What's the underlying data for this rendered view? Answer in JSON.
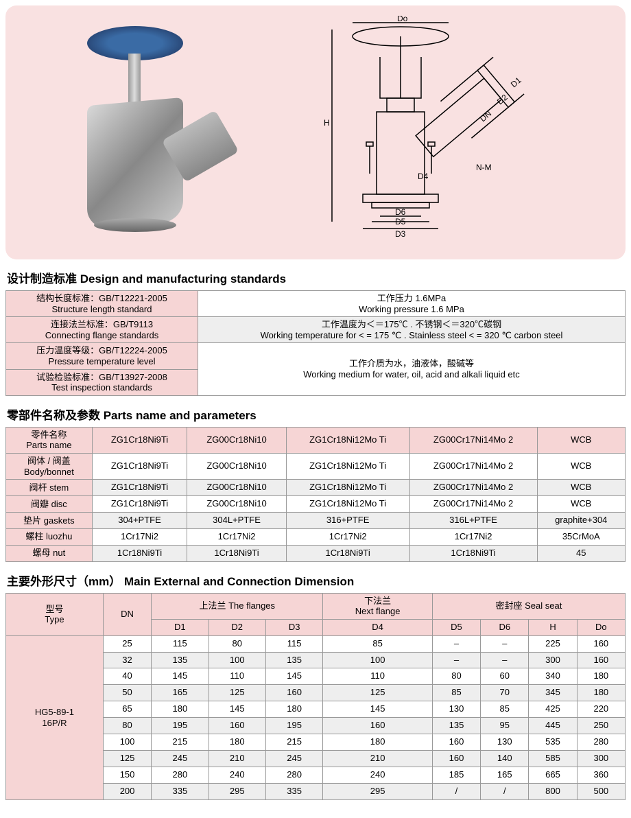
{
  "hero": {
    "bg_color": "#f9e1e1",
    "diagram_labels": [
      "Do",
      "H",
      "D1",
      "D2",
      "DN",
      "D4",
      "N-M",
      "D6",
      "D5",
      "D3"
    ]
  },
  "sections": {
    "design_title": "设计制造标准 Design and manufacturing standards",
    "parts_title": "零部件名称及参数 Parts name and parameters",
    "dims_title": "主要外形尺寸（mm） Main External and Connection Dimension"
  },
  "design_table": {
    "rows": [
      {
        "left_cn": "结构长度标准：GB/T12221-2005",
        "left_en": "Structure length standard",
        "right_cn": "工作压力 1.6MPa",
        "right_en": "Working pressure 1.6 MPa",
        "right_rowspan": 1,
        "left_bg": "pink",
        "right_bg": "white"
      },
      {
        "left_cn": "连接法兰标准：GB/T9113",
        "left_en": "Connecting flange standards",
        "right_cn": "工作温度为＜＝175℃ . 不锈钢＜＝320℃碳钢",
        "right_en": "Working temperature for < = 175 ℃ . Stainless steel < = 320 ℃ carbon steel",
        "right_rowspan": 1,
        "left_bg": "pink",
        "right_bg": "gray"
      },
      {
        "left_cn": "压力温度等级：GB/T12224-2005",
        "left_en": "Pressure temperature level",
        "right_cn": "工作介质为水，油液体，酸碱等",
        "right_en": "Working medium for water, oil, acid and alkali liquid etc",
        "right_rowspan": 2,
        "left_bg": "pink",
        "right_bg": "white"
      },
      {
        "left_cn": "试验检验标准：GB/T13927-2008",
        "left_en": "Test inspection standards",
        "left_bg": "pink"
      }
    ]
  },
  "parts_table": {
    "header": {
      "col0_cn": "零件名称",
      "col0_en": "Parts name",
      "cols": [
        "ZG1Cr18Ni9Ti",
        "ZG00Cr18Ni10",
        "ZG1Cr18Ni12Mo Ti",
        "ZG00Cr17Ni14Mo 2",
        "WCB"
      ]
    },
    "rows": [
      {
        "label_cn": "阀体 / 阀盖",
        "label_en": "Body/bonnet",
        "bg": "pink",
        "vals": [
          "ZG1Cr18Ni9Ti",
          "ZG00Cr18Ni10",
          "ZG1Cr18Ni12Mo Ti",
          "ZG00Cr17Ni14Mo 2",
          "WCB"
        ],
        "vbg": "white"
      },
      {
        "label_cn": "阀杆 stem",
        "label_en": "",
        "bg": "pink",
        "vals": [
          "ZG1Cr18Ni9Ti",
          "ZG00Cr18Ni10",
          "ZG1Cr18Ni12Mo Ti",
          "ZG00Cr17Ni14Mo 2",
          "WCB"
        ],
        "vbg": "gray"
      },
      {
        "label_cn": "阀瓣 disc",
        "label_en": "",
        "bg": "pink",
        "vals": [
          "ZG1Cr18Ni9Ti",
          "ZG00Cr18Ni10",
          "ZG1Cr18Ni12Mo Ti",
          "ZG00Cr17Ni14Mo 2",
          "WCB"
        ],
        "vbg": "white"
      },
      {
        "label_cn": "垫片 gaskets",
        "label_en": "",
        "bg": "pink",
        "vals": [
          "304+PTFE",
          "304L+PTFE",
          "316+PTFE",
          "316L+PTFE",
          "graphite+304"
        ],
        "vbg": "gray"
      },
      {
        "label_cn": "螺柱 luozhu",
        "label_en": "",
        "bg": "pink",
        "vals": [
          "1Cr17Ni2",
          "1Cr17Ni2",
          "1Cr17Ni2",
          "1Cr17Ni2",
          "35CrMoA"
        ],
        "vbg": "white"
      },
      {
        "label_cn": "螺母 nut",
        "label_en": "",
        "bg": "pink",
        "vals": [
          "1Cr18Ni9Ti",
          "1Cr18Ni9Ti",
          "1Cr18Ni9Ti",
          "1Cr18Ni9Ti",
          "45"
        ],
        "vbg": "gray"
      }
    ]
  },
  "dims_table": {
    "header_row1": {
      "type_cn": "型号",
      "type_en": "Type",
      "dn": "DN",
      "flanges_cn": "上法兰 The flanges",
      "next_cn": "下法兰",
      "next_en": "Next flange",
      "seal_cn": "密封座 Seal seat"
    },
    "header_row2": [
      "D1",
      "D2",
      "D3",
      "D4",
      "D5",
      "D6",
      "H",
      "Do"
    ],
    "type_label": "HG5-89-1 16P/R",
    "rows": [
      {
        "dn": "25",
        "d1": "115",
        "d2": "80",
        "d3": "115",
        "d4": "85",
        "d5": "–",
        "d6": "–",
        "h": "225",
        "do": "160",
        "bg": "white"
      },
      {
        "dn": "32",
        "d1": "135",
        "d2": "100",
        "d3": "135",
        "d4": "100",
        "d5": "–",
        "d6": "–",
        "h": "300",
        "do": "160",
        "bg": "gray"
      },
      {
        "dn": "40",
        "d1": "145",
        "d2": "110",
        "d3": "145",
        "d4": "110",
        "d5": "80",
        "d6": "60",
        "h": "340",
        "do": "180",
        "bg": "white"
      },
      {
        "dn": "50",
        "d1": "165",
        "d2": "125",
        "d3": "160",
        "d4": "125",
        "d5": "85",
        "d6": "70",
        "h": "345",
        "do": "180",
        "bg": "gray"
      },
      {
        "dn": "65",
        "d1": "180",
        "d2": "145",
        "d3": "180",
        "d4": "145",
        "d5": "130",
        "d6": "85",
        "h": "425",
        "do": "220",
        "bg": "white"
      },
      {
        "dn": "80",
        "d1": "195",
        "d2": "160",
        "d3": "195",
        "d4": "160",
        "d5": "135",
        "d6": "95",
        "h": "445",
        "do": "250",
        "bg": "gray"
      },
      {
        "dn": "100",
        "d1": "215",
        "d2": "180",
        "d3": "215",
        "d4": "180",
        "d5": "160",
        "d6": "130",
        "h": "535",
        "do": "280",
        "bg": "white"
      },
      {
        "dn": "125",
        "d1": "245",
        "d2": "210",
        "d3": "245",
        "d4": "210",
        "d5": "160",
        "d6": "140",
        "h": "585",
        "do": "300",
        "bg": "gray"
      },
      {
        "dn": "150",
        "d1": "280",
        "d2": "240",
        "d3": "280",
        "d4": "240",
        "d5": "185",
        "d6": "165",
        "h": "665",
        "do": "360",
        "bg": "white"
      },
      {
        "dn": "200",
        "d1": "335",
        "d2": "295",
        "d3": "335",
        "d4": "295",
        "d5": "/",
        "d6": "/",
        "h": "800",
        "do": "500",
        "bg": "gray"
      }
    ]
  },
  "colors": {
    "pink": "#f6d5d5",
    "gray": "#eeeeee",
    "border": "#999999"
  }
}
